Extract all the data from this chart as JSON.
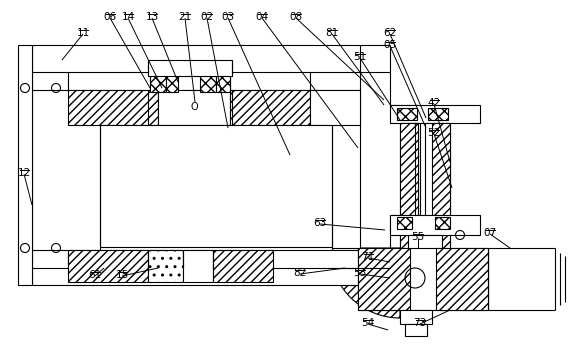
{
  "bg_color": "#ffffff",
  "lc": "#000000",
  "lw": 0.8,
  "fs": 7.5,
  "labels": [
    [
      "11",
      83,
      28
    ],
    [
      "06",
      110,
      12
    ],
    [
      "14",
      128,
      12
    ],
    [
      "13",
      152,
      12
    ],
    [
      "21",
      185,
      12
    ],
    [
      "02",
      207,
      12
    ],
    [
      "03",
      228,
      12
    ],
    [
      "04",
      262,
      12
    ],
    [
      "08",
      296,
      12
    ],
    [
      "81",
      332,
      28
    ],
    [
      "62",
      390,
      28
    ],
    [
      "05",
      390,
      40
    ],
    [
      "51",
      360,
      52
    ],
    [
      "42",
      434,
      98
    ],
    [
      "52",
      434,
      128
    ],
    [
      "12",
      24,
      168
    ],
    [
      "61",
      95,
      270
    ],
    [
      "15",
      122,
      270
    ],
    [
      "82",
      300,
      268
    ],
    [
      "63",
      320,
      218
    ],
    [
      "55",
      418,
      232
    ],
    [
      "07",
      490,
      228
    ],
    [
      "71",
      368,
      252
    ],
    [
      "53",
      360,
      268
    ],
    [
      "54",
      368,
      318
    ],
    [
      "73",
      420,
      318
    ]
  ],
  "leader_lines": [
    [
      110,
      18,
      150,
      88
    ],
    [
      128,
      18,
      162,
      88
    ],
    [
      152,
      18,
      178,
      82
    ],
    [
      185,
      18,
      195,
      102
    ],
    [
      207,
      18,
      228,
      128
    ],
    [
      228,
      18,
      290,
      155
    ],
    [
      262,
      18,
      358,
      148
    ],
    [
      296,
      18,
      384,
      100
    ],
    [
      332,
      34,
      384,
      105
    ],
    [
      390,
      34,
      426,
      118
    ],
    [
      390,
      46,
      426,
      128
    ],
    [
      360,
      58,
      400,
      120
    ],
    [
      434,
      104,
      450,
      162
    ],
    [
      434,
      134,
      452,
      188
    ],
    [
      24,
      174,
      32,
      205
    ],
    [
      95,
      276,
      104,
      268
    ],
    [
      122,
      276,
      158,
      268
    ],
    [
      300,
      274,
      345,
      268
    ],
    [
      320,
      224,
      385,
      230
    ],
    [
      418,
      238,
      418,
      248
    ],
    [
      490,
      234,
      510,
      248
    ],
    [
      368,
      258,
      390,
      262
    ],
    [
      360,
      274,
      390,
      278
    ],
    [
      368,
      324,
      388,
      330
    ],
    [
      420,
      324,
      450,
      310
    ],
    [
      83,
      34,
      62,
      60
    ]
  ]
}
